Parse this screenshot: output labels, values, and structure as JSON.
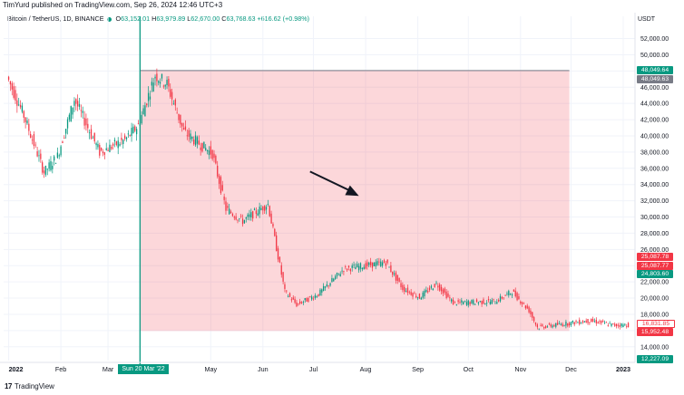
{
  "publisher": "TimYurd published on TradingView.com, Sep 26, 2024 12:46 UTC+3",
  "legend": {
    "symbol": "Bitcoin / TetherUS, 1D, BINANCE",
    "o_label": "O",
    "o": "63,152.01",
    "h_label": "H",
    "h": "63,979.89",
    "l_label": "L",
    "l": "62,670.00",
    "c_label": "C",
    "c": "63,768.63",
    "change": "+616.62 (+0.98%)"
  },
  "currency": "USDT",
  "footer": {
    "brand": "TradingView",
    "logo_glyph": "17"
  },
  "price_tags": [
    {
      "text": "48,049.64",
      "color": "#089981",
      "value": 48049.64
    },
    {
      "text": "48,049.63",
      "color": "#787b86",
      "value": 48049.63
    },
    {
      "text": "25,087.78",
      "color": "#f23645",
      "value": 25087.78
    },
    {
      "text": "25,087.77",
      "color": "#f23645",
      "value": 25087.77
    },
    {
      "text": "24,803.60",
      "color": "#089981",
      "value": 24803.6
    },
    {
      "text": "16,831.85",
      "color": "#f23645",
      "value": 16831.85,
      "outlined": true
    },
    {
      "text": "15,952.48",
      "color": "#f23645",
      "value": 15952.48
    },
    {
      "text": "12,227.09",
      "color": "#089981",
      "value": 12227.09
    }
  ],
  "cursor_date_label": "Sun 20 Mar '22",
  "chart_data": {
    "type": "candlestick",
    "symbol": "BTC/USDT",
    "interval": "1D",
    "y_axis": {
      "ticks": [
        14000,
        16000,
        18000,
        20000,
        22000,
        24000,
        26000,
        28000,
        30000,
        32000,
        34000,
        36000,
        38000,
        40000,
        42000,
        44000,
        46000,
        48000,
        50000,
        52000
      ],
      "tick_labels": [
        "14,000.00",
        "16,000.00",
        "18,000.00",
        "20,000.00",
        "22,000.00",
        "24,000.00",
        "26,000.00",
        "28,000.00",
        "30,000.00",
        "32,000.00",
        "34,000.00",
        "36,000.00",
        "38,000.00",
        "40,000.00",
        "42,000.00",
        "44,000.00",
        "46,000.00",
        "48,000.00",
        "50,000.00",
        "52,000.00"
      ],
      "range": [
        12300,
        53400
      ]
    },
    "x_axis": {
      "tick_labels": [
        "2022",
        "Feb",
        "Mar",
        "May",
        "Jun",
        "Jul",
        "Aug",
        "Sep",
        "Oct",
        "Nov",
        "Dec",
        "2023"
      ],
      "tick_days": [
        0,
        31,
        59,
        120,
        151,
        181,
        212,
        243,
        273,
        304,
        334,
        365
      ],
      "range_days": [
        -3,
        372
      ]
    },
    "annotations": {
      "highlight_box": {
        "day_start": 78,
        "day_end": 333,
        "price_top": 48049.63,
        "price_bottom": 15952.48
      },
      "arrow": {
        "from": {
          "day": 179,
          "price": 35600
        },
        "to": {
          "day": 208,
          "price": 32600
        }
      },
      "vertical_line_day": 78
    },
    "key_points": [
      {
        "day": 0,
        "price": 47300
      },
      {
        "day": 10,
        "price": 42500
      },
      {
        "day": 22,
        "price": 35500
      },
      {
        "day": 30,
        "price": 37500
      },
      {
        "day": 40,
        "price": 44500
      },
      {
        "day": 55,
        "price": 38000
      },
      {
        "day": 70,
        "price": 39500
      },
      {
        "day": 78,
        "price": 41300
      },
      {
        "day": 88,
        "price": 47500
      },
      {
        "day": 95,
        "price": 46400
      },
      {
        "day": 105,
        "price": 40500
      },
      {
        "day": 122,
        "price": 37800
      },
      {
        "day": 130,
        "price": 31000
      },
      {
        "day": 140,
        "price": 29500
      },
      {
        "day": 155,
        "price": 31600
      },
      {
        "day": 165,
        "price": 20800
      },
      {
        "day": 172,
        "price": 19200
      },
      {
        "day": 185,
        "price": 20500
      },
      {
        "day": 200,
        "price": 23600
      },
      {
        "day": 225,
        "price": 24400
      },
      {
        "day": 235,
        "price": 21200
      },
      {
        "day": 245,
        "price": 20100
      },
      {
        "day": 255,
        "price": 21800
      },
      {
        "day": 265,
        "price": 19400
      },
      {
        "day": 290,
        "price": 19600
      },
      {
        "day": 300,
        "price": 20800
      },
      {
        "day": 310,
        "price": 18500
      },
      {
        "day": 315,
        "price": 16400
      },
      {
        "day": 330,
        "price": 16800
      },
      {
        "day": 345,
        "price": 17200
      },
      {
        "day": 350,
        "price": 17100
      },
      {
        "day": 360,
        "price": 16650
      },
      {
        "day": 365,
        "price": 16700
      }
    ]
  }
}
